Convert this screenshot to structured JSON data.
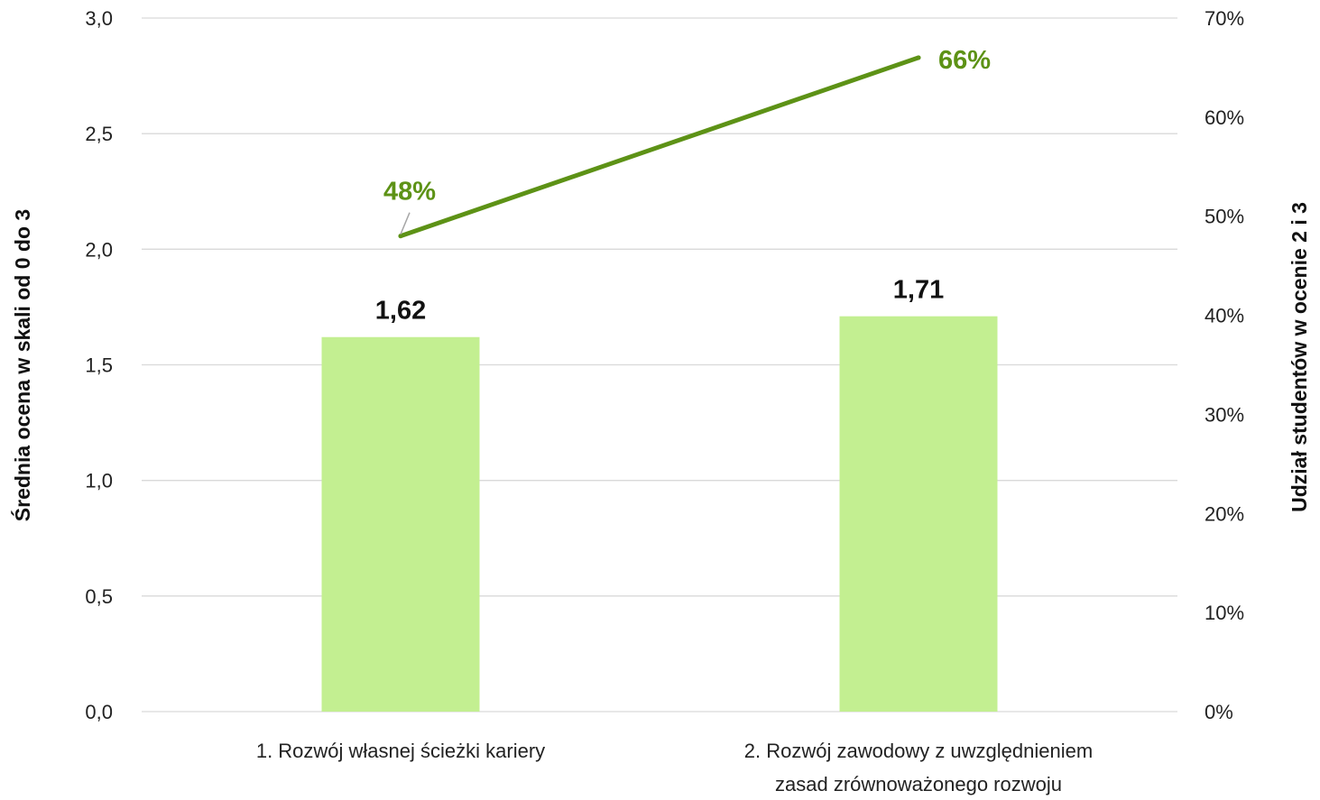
{
  "chart_data": {
    "type": "bar",
    "categories": [
      [
        "1. Rozwój własnej ścieżki kariery"
      ],
      [
        "2. Rozwój zawodowy z uwzględnieniem",
        "zasad zrównoważonego rozwoju"
      ]
    ],
    "series": [
      {
        "values": [
          1.62,
          1.71
        ],
        "value_labels": [
          "1,62",
          "1,71"
        ],
        "type": "bar",
        "axis": "left",
        "color": "#c3ef91"
      },
      {
        "values": [
          48,
          66
        ],
        "value_labels": [
          "48%",
          "66%"
        ],
        "type": "line",
        "axis": "right",
        "color": "#5d9216"
      }
    ],
    "ylabel": "Średnia ocena w skali od 0 do 3",
    "ylim": [
      0,
      3
    ],
    "yticks": [
      "0,0",
      "0,5",
      "1,0",
      "1,5",
      "2,0",
      "2,5",
      "3,0"
    ],
    "y2label": "Udział studentów w ocenie 2 i 3",
    "y2lim": [
      0,
      70
    ],
    "y2ticks": [
      "0%",
      "10%",
      "20%",
      "30%",
      "40%",
      "50%",
      "60%",
      "70%"
    ],
    "grid": true,
    "gridline_color": "#d9d9d9",
    "legend": "none"
  }
}
